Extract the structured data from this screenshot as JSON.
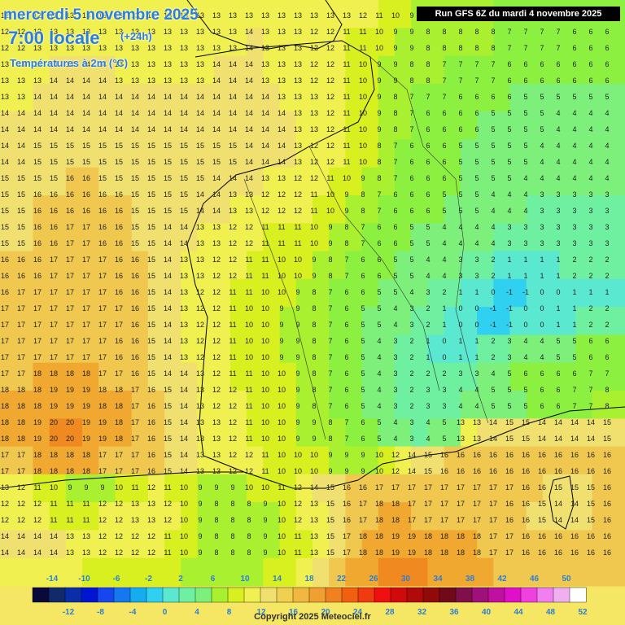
{
  "header": {
    "date_line": "mercredi 5 novembre 2025",
    "time_line": "7:00 locale",
    "lead_time": "(+24h)",
    "parameter": "Températures à 2m (°C)"
  },
  "run_info": "Run GFS 6Z du mardi 4 novembre 2025",
  "copyright": "Copyright 2025 Meteociel.fr",
  "legend": {
    "top_labels": [
      "-14",
      "-10",
      "-6",
      "-2",
      "2",
      "6",
      "10",
      "14",
      "18",
      "22",
      "26",
      "30",
      "34",
      "38",
      "42",
      "46",
      "50"
    ],
    "bottom_labels": [
      "-12",
      "-8",
      "-4",
      "0",
      "4",
      "8",
      "12",
      "16",
      "20",
      "24",
      "28",
      "32",
      "36",
      "40",
      "44",
      "48",
      "52"
    ],
    "colors": [
      "#0a0a3a",
      "#102a6a",
      "#0a2ea8",
      "#0014d4",
      "#1646f0",
      "#1478f0",
      "#14aef0",
      "#30d0f0",
      "#5ae8d0",
      "#6ef0a0",
      "#7cf07a",
      "#a8f030",
      "#d8f020",
      "#f0f050",
      "#f0e070",
      "#f0d050",
      "#f0b840",
      "#f0a030",
      "#f08020",
      "#f06010",
      "#f03a10",
      "#f01010",
      "#d00a0a",
      "#b00a0a",
      "#900a0a",
      "#700a1a",
      "#80104a",
      "#a0107a",
      "#c010a0",
      "#e010c8",
      "#f040e0",
      "#f080f0",
      "#f0b0f0",
      "#ffffff"
    ]
  },
  "map": {
    "description_free": true,
    "temperature_grid": [
      [
        12,
        12,
        12,
        12,
        13,
        13,
        13,
        13,
        13,
        13,
        13,
        13,
        13,
        13,
        13,
        13,
        13,
        13,
        13,
        13,
        13,
        13,
        12,
        11,
        10,
        9,
        9,
        8,
        8,
        8,
        7,
        7,
        7,
        7,
        6,
        6,
        6,
        6
      ],
      [
        12,
        12,
        13,
        13,
        13,
        13,
        13,
        13,
        13,
        13,
        13,
        13,
        13,
        13,
        13,
        14,
        13,
        13,
        13,
        12,
        12,
        11,
        11,
        10,
        9,
        9,
        8,
        8,
        8,
        8,
        7,
        7,
        7,
        7,
        6,
        6,
        6,
        6
      ],
      [
        13,
        13,
        13,
        14,
        14,
        14,
        14,
        13,
        13,
        13,
        13,
        13,
        13,
        14,
        14,
        14,
        13,
        13,
        13,
        12,
        12,
        11,
        10,
        9,
        9,
        8,
        8,
        7,
        7,
        7,
        6,
        6,
        6,
        6,
        6,
        6,
        6,
        6
      ],
      [
        13,
        13,
        14,
        14,
        14,
        14,
        14,
        14,
        14,
        14,
        14,
        14,
        14,
        14,
        14,
        14,
        14,
        13,
        13,
        13,
        12,
        11,
        10,
        9,
        8,
        7,
        7,
        7,
        6,
        6,
        6,
        5,
        5,
        5,
        5,
        5,
        5,
        5
      ],
      [
        14,
        14,
        14,
        14,
        14,
        14,
        14,
        14,
        14,
        14,
        14,
        14,
        14,
        14,
        14,
        14,
        14,
        14,
        13,
        13,
        12,
        11,
        10,
        9,
        8,
        7,
        6,
        6,
        6,
        5,
        5,
        5,
        5,
        4,
        4,
        4,
        4,
        4
      ],
      [
        14,
        14,
        15,
        15,
        15,
        15,
        15,
        15,
        15,
        15,
        15,
        15,
        15,
        15,
        15,
        14,
        14,
        14,
        13,
        12,
        12,
        11,
        10,
        8,
        7,
        6,
        6,
        6,
        5,
        5,
        5,
        5,
        4,
        4,
        4,
        4,
        4,
        4
      ],
      [
        15,
        15,
        15,
        15,
        16,
        16,
        15,
        15,
        15,
        15,
        15,
        15,
        15,
        14,
        14,
        14,
        13,
        13,
        12,
        12,
        11,
        10,
        9,
        8,
        7,
        6,
        6,
        6,
        5,
        5,
        5,
        4,
        4,
        4,
        4,
        4,
        4,
        4
      ],
      [
        15,
        15,
        16,
        16,
        16,
        16,
        16,
        16,
        15,
        15,
        15,
        15,
        14,
        14,
        13,
        13,
        12,
        12,
        12,
        11,
        10,
        9,
        8,
        7,
        6,
        6,
        6,
        5,
        5,
        4,
        4,
        4,
        3,
        3,
        3,
        3,
        3,
        3
      ],
      [
        15,
        15,
        16,
        16,
        17,
        17,
        16,
        16,
        15,
        15,
        14,
        14,
        13,
        13,
        12,
        12,
        11,
        11,
        11,
        10,
        9,
        8,
        7,
        6,
        6,
        5,
        5,
        4,
        4,
        4,
        3,
        3,
        3,
        3,
        3,
        3,
        3,
        3
      ],
      [
        16,
        16,
        16,
        17,
        17,
        17,
        17,
        16,
        16,
        15,
        14,
        13,
        13,
        12,
        12,
        11,
        11,
        10,
        10,
        9,
        8,
        7,
        6,
        6,
        5,
        5,
        4,
        4,
        3,
        2,
        1,
        1,
        1,
        1,
        2,
        2,
        2,
        2
      ],
      [
        16,
        17,
        17,
        17,
        17,
        17,
        17,
        16,
        16,
        15,
        14,
        13,
        12,
        12,
        11,
        11,
        10,
        10,
        9,
        8,
        7,
        6,
        6,
        5,
        5,
        4,
        3,
        2,
        1,
        0,
        -1,
        -1,
        0,
        0,
        1,
        1,
        1,
        1
      ],
      [
        17,
        17,
        17,
        17,
        17,
        17,
        17,
        17,
        16,
        15,
        14,
        13,
        12,
        12,
        11,
        10,
        10,
        9,
        9,
        8,
        7,
        6,
        5,
        5,
        4,
        3,
        2,
        1,
        0,
        -1,
        -1,
        0,
        0,
        1,
        1,
        2,
        2,
        2
      ],
      [
        17,
        17,
        17,
        17,
        17,
        17,
        17,
        16,
        16,
        15,
        14,
        13,
        12,
        12,
        11,
        10,
        10,
        9,
        9,
        8,
        7,
        6,
        5,
        4,
        3,
        2,
        1,
        0,
        1,
        2,
        3,
        4,
        4,
        5,
        5,
        6,
        6,
        6
      ],
      [
        17,
        17,
        18,
        18,
        18,
        18,
        17,
        17,
        16,
        15,
        14,
        14,
        13,
        12,
        11,
        11,
        10,
        10,
        9,
        8,
        7,
        6,
        5,
        4,
        3,
        2,
        2,
        2,
        3,
        4,
        5,
        6,
        6,
        6,
        6,
        7,
        7,
        7
      ],
      [
        18,
        18,
        18,
        19,
        19,
        19,
        18,
        18,
        17,
        16,
        15,
        14,
        13,
        12,
        12,
        11,
        10,
        10,
        9,
        8,
        7,
        6,
        5,
        4,
        3,
        2,
        3,
        3,
        4,
        5,
        5,
        5,
        6,
        6,
        7,
        7,
        8,
        8
      ],
      [
        18,
        18,
        19,
        20,
        20,
        19,
        19,
        18,
        17,
        16,
        15,
        14,
        13,
        13,
        12,
        11,
        10,
        10,
        9,
        9,
        8,
        7,
        6,
        5,
        4,
        3,
        4,
        5,
        13,
        14,
        15,
        15,
        14,
        14,
        14,
        14,
        15,
        15
      ],
      [
        17,
        17,
        18,
        18,
        18,
        18,
        17,
        17,
        17,
        16,
        15,
        14,
        13,
        13,
        12,
        12,
        11,
        10,
        10,
        10,
        9,
        9,
        9,
        10,
        12,
        14,
        15,
        16,
        16,
        16,
        16,
        16,
        16,
        16,
        16,
        16,
        16,
        16
      ],
      [
        13,
        12,
        11,
        10,
        9,
        9,
        9,
        10,
        11,
        12,
        11,
        10,
        9,
        9,
        9,
        10,
        10,
        11,
        12,
        14,
        15,
        16,
        16,
        17,
        17,
        17,
        17,
        17,
        17,
        17,
        17,
        16,
        16,
        15,
        15,
        15,
        16,
        16
      ],
      [
        12,
        12,
        12,
        11,
        11,
        11,
        12,
        12,
        13,
        13,
        12,
        10,
        9,
        8,
        8,
        8,
        9,
        10,
        12,
        13,
        15,
        16,
        17,
        18,
        18,
        17,
        17,
        17,
        17,
        17,
        16,
        16,
        15,
        14,
        14,
        15,
        16,
        16
      ],
      [
        14,
        14,
        14,
        14,
        13,
        13,
        12,
        12,
        12,
        12,
        11,
        10,
        9,
        8,
        8,
        8,
        9,
        10,
        11,
        13,
        15,
        17,
        18,
        18,
        19,
        19,
        18,
        18,
        18,
        17,
        17,
        16,
        16,
        16,
        16,
        16,
        16,
        16
      ],
      [
        13,
        13,
        13,
        12,
        12,
        11,
        11,
        10,
        10,
        10,
        10,
        9,
        9,
        9,
        9,
        9,
        10,
        11,
        13,
        15,
        17,
        18,
        19,
        20,
        20,
        20,
        19,
        19,
        18,
        18,
        17,
        17,
        17,
        17,
        16,
        16,
        16,
        16
      ]
    ]
  }
}
